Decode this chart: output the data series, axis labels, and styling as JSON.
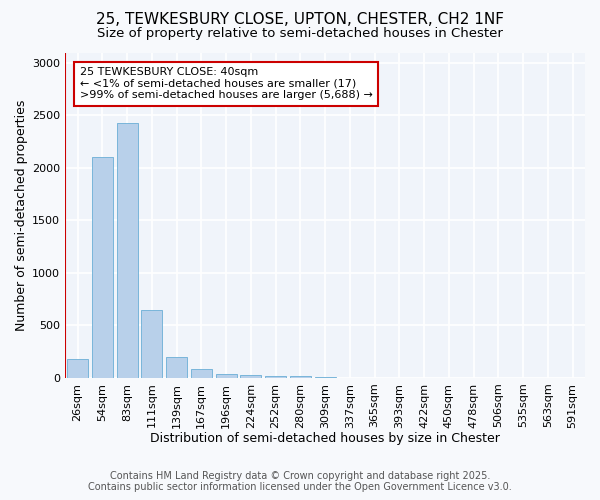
{
  "title_line1": "25, TEWKESBURY CLOSE, UPTON, CHESTER, CH2 1NF",
  "title_line2": "Size of property relative to semi-detached houses in Chester",
  "xlabel": "Distribution of semi-detached houses by size in Chester",
  "ylabel": "Number of semi-detached properties",
  "categories": [
    "26sqm",
    "54sqm",
    "83sqm",
    "111sqm",
    "139sqm",
    "167sqm",
    "196sqm",
    "224sqm",
    "252sqm",
    "280sqm",
    "309sqm",
    "337sqm",
    "365sqm",
    "393sqm",
    "422sqm",
    "450sqm",
    "478sqm",
    "506sqm",
    "535sqm",
    "563sqm",
    "591sqm"
  ],
  "values": [
    175,
    2100,
    2430,
    645,
    195,
    85,
    40,
    30,
    20,
    15,
    10,
    0,
    0,
    0,
    0,
    0,
    0,
    0,
    0,
    0,
    0
  ],
  "bar_color": "#b8d0ea",
  "bar_edge_color": "#6aaed6",
  "highlight_color": "#cc0000",
  "annotation_text": "25 TEWKESBURY CLOSE: 40sqm\n← <1% of semi-detached houses are smaller (17)\n>99% of semi-detached houses are larger (5,688) →",
  "annotation_box_color": "#ffffff",
  "annotation_box_edge": "#cc0000",
  "ylim": [
    0,
    3100
  ],
  "yticks": [
    0,
    500,
    1000,
    1500,
    2000,
    2500,
    3000
  ],
  "footer_line1": "Contains HM Land Registry data © Crown copyright and database right 2025.",
  "footer_line2": "Contains public sector information licensed under the Open Government Licence v3.0.",
  "bg_color": "#f7f9fc",
  "plot_bg_color": "#f0f4fa",
  "grid_color": "#ffffff",
  "title_fontsize": 11,
  "subtitle_fontsize": 9.5,
  "tick_fontsize": 8,
  "label_fontsize": 9,
  "footer_fontsize": 7,
  "annotation_fontsize": 8
}
